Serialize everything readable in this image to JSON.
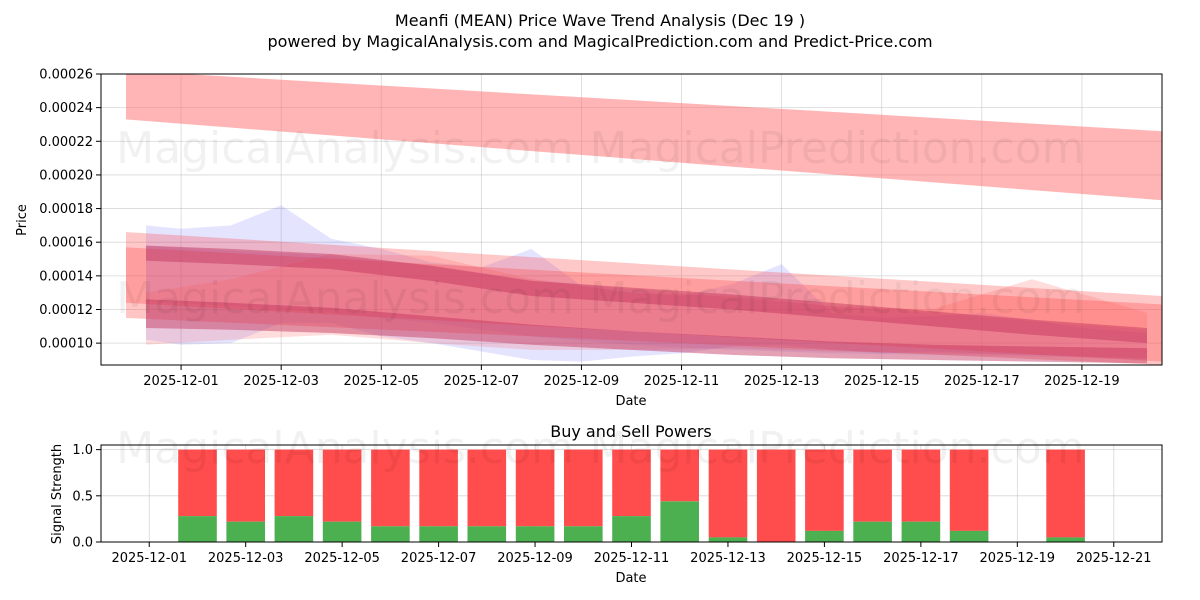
{
  "figure": {
    "title_line1": "Meanfi (MEAN) Price Wave Trend Analysis (Dec 19 )",
    "title_line2": "powered by MagicalAnalysis.com and MagicalPrediction.com and Predict-Price.com",
    "watermark_left": "MagicalAnalysis.com",
    "watermark_right": "MagicalPrediction.com"
  },
  "chart_data": [
    {
      "type": "area",
      "title": "",
      "xlabel": "Date",
      "ylabel": "Price",
      "ylim": [
        8.7e-05,
        0.00026
      ],
      "x_range_days": [
        -0.6,
        20.6
      ],
      "x_start_date": "2025-11-30",
      "xticks": [
        {
          "day": 1,
          "label": "2025-12-01"
        },
        {
          "day": 3,
          "label": "2025-12-03"
        },
        {
          "day": 5,
          "label": "2025-12-05"
        },
        {
          "day": 7,
          "label": "2025-12-07"
        },
        {
          "day": 9,
          "label": "2025-12-09"
        },
        {
          "day": 11,
          "label": "2025-12-11"
        },
        {
          "day": 13,
          "label": "2025-12-13"
        },
        {
          "day": 15,
          "label": "2025-12-15"
        },
        {
          "day": 17,
          "label": "2025-12-17"
        },
        {
          "day": 19,
          "label": "2025-12-19"
        }
      ],
      "yticks": [
        {
          "value": 0.0001,
          "label": "0.00010"
        },
        {
          "value": 0.00012,
          "label": "0.00012"
        },
        {
          "value": 0.00014,
          "label": "0.00014"
        },
        {
          "value": 0.00016,
          "label": "0.00016"
        },
        {
          "value": 0.00018,
          "label": "0.00018"
        },
        {
          "value": 0.0002,
          "label": "0.00020"
        },
        {
          "value": 0.00022,
          "label": "0.00022"
        },
        {
          "value": 0.00024,
          "label": "0.00024"
        },
        {
          "value": 0.00026,
          "label": "0.00026"
        }
      ],
      "bands": [
        {
          "name": "upper-red-band",
          "color": "#ff6b6b",
          "opacity": 0.5,
          "x": [
            -0.1,
            20.6
          ],
          "upper": [
            0.000262,
            0.000226
          ],
          "lower": [
            0.000233,
            0.000185
          ]
        },
        {
          "name": "blue-wave-1",
          "color": "#6b6bff",
          "opacity": 0.18,
          "x": [
            0.3,
            1,
            2,
            3,
            4,
            5,
            6,
            7,
            8,
            9,
            10,
            11,
            12,
            13,
            14,
            15,
            16,
            17,
            18,
            19,
            20.3
          ],
          "upper": [
            0.00017,
            0.000168,
            0.00017,
            0.000182,
            0.000162,
            0.000156,
            0.000148,
            0.000145,
            0.000156,
            0.000134,
            0.00013,
            0.000128,
            0.000135,
            0.000147,
            0.000118,
            0.000115,
            0.000116,
            0.000118,
            0.000114,
            0.000109,
            0.000106
          ],
          "lower": [
            0.000102,
            9.9e-05,
            0.0001,
            0.000112,
            0.000112,
            0.000104,
            0.0001,
            9.5e-05,
            9e-05,
            8.9e-05,
            9.2e-05,
            9.4e-05,
            9.8e-05,
            9.9e-05,
            9.6e-05,
            9.4e-05,
            9.5e-05,
            9.4e-05,
            9.3e-05,
            9.2e-05,
            9e-05
          ]
        },
        {
          "name": "blue-wave-2",
          "color": "#6b6bff",
          "opacity": 0.15,
          "x": [
            0.3,
            2,
            4,
            6,
            8,
            10,
            12,
            14,
            16,
            18,
            20.3
          ],
          "upper": [
            0.000158,
            0.000155,
            0.000152,
            0.000146,
            0.000138,
            0.000132,
            0.000127,
            0.000122,
            0.000118,
            0.000113,
            0.000108
          ],
          "lower": [
            0.000125,
            0.000122,
            0.000118,
            0.000112,
            0.000104,
            9.9e-05,
            9.6e-05,
            9.4e-05,
            9.3e-05,
            9.2e-05,
            9.1e-05
          ]
        },
        {
          "name": "red-wave-1",
          "color": "#ff3b3b",
          "opacity": 0.28,
          "x": [
            -0.1,
            20.6
          ],
          "upper": [
            0.000166,
            0.000128
          ],
          "lower": [
            0.000124,
            8.9e-05
          ]
        },
        {
          "name": "red-wave-2",
          "color": "#ff4040",
          "opacity": 0.3,
          "x": [
            -0.1,
            20.6
          ],
          "upper": [
            0.000157,
            0.000123
          ],
          "lower": [
            0.000115,
            8.7e-05
          ]
        },
        {
          "name": "red-wave-3",
          "color": "#ff5555",
          "opacity": 0.2,
          "x": [
            0.3,
            2,
            4,
            6,
            8,
            10,
            12,
            14,
            16,
            18,
            20.3
          ],
          "upper": [
            0.00013,
            0.000138,
            0.000153,
            0.000152,
            0.000138,
            0.00013,
            0.000128,
            0.000122,
            0.00012,
            0.000138,
            0.000118
          ],
          "lower": [
            9.9e-05,
            0.000102,
            0.000105,
            0.0001,
            9.6e-05,
            9.6e-05,
            9.7e-05,
            9.5e-05,
            9.4e-05,
            9.3e-05,
            9.1e-05
          ]
        },
        {
          "name": "crimson-wave-1",
          "color": "#c0305a",
          "opacity": 0.45,
          "x": [
            0.3,
            2,
            4,
            6,
            8,
            10,
            12,
            14,
            16,
            18,
            20.3
          ],
          "upper": [
            0.000158,
            0.000156,
            0.000153,
            0.000146,
            0.000137,
            0.000133,
            0.000129,
            0.000124,
            0.000119,
            0.000114,
            0.000109
          ],
          "lower": [
            0.000149,
            0.000147,
            0.000144,
            0.000137,
            0.000128,
            0.000124,
            0.00012,
            0.000115,
            0.00011,
            0.000105,
            0.0001
          ]
        },
        {
          "name": "crimson-wave-2",
          "color": "#c0305a",
          "opacity": 0.45,
          "x": [
            0.3,
            2,
            4,
            6,
            8,
            10,
            12,
            14,
            16,
            18,
            20.3
          ],
          "upper": [
            0.000126,
            0.000124,
            0.000121,
            0.000116,
            0.000111,
            0.000107,
            0.000104,
            0.000101,
            9.9e-05,
            9.8e-05,
            9.7e-05
          ],
          "lower": [
            0.000109,
            0.000108,
            0.000106,
            0.000103,
            9.9e-05,
            9.6e-05,
            9.3e-05,
            9.1e-05,
            9e-05,
            8.9e-05,
            8.8e-05
          ]
        }
      ]
    },
    {
      "type": "bar",
      "title": "Buy and Sell Powers",
      "xlabel": "Date",
      "ylabel": "Signal Strength",
      "ylim": [
        0,
        1.05
      ],
      "x_range_days": [
        -1.0,
        21.0
      ],
      "x_start_date": "2025-12-01",
      "xticks": [
        {
          "day": 0,
          "label": "2025-12-01"
        },
        {
          "day": 2,
          "label": "2025-12-03"
        },
        {
          "day": 4,
          "label": "2025-12-05"
        },
        {
          "day": 6,
          "label": "2025-12-07"
        },
        {
          "day": 8,
          "label": "2025-12-09"
        },
        {
          "day": 10,
          "label": "2025-12-11"
        },
        {
          "day": 12,
          "label": "2025-12-13"
        },
        {
          "day": 14,
          "label": "2025-12-15"
        },
        {
          "day": 16,
          "label": "2025-12-17"
        },
        {
          "day": 18,
          "label": "2025-12-19"
        },
        {
          "day": 20,
          "label": "2025-12-21"
        }
      ],
      "yticks": [
        {
          "value": 0,
          "label": "0.0"
        },
        {
          "value": 0.5,
          "label": "0.5"
        },
        {
          "value": 1,
          "label": "1.0"
        }
      ],
      "series": [
        {
          "name": "Buy",
          "color": "#4caf50"
        },
        {
          "name": "Sell",
          "color": "#ff4c4c"
        }
      ],
      "bar_days": [
        1,
        2,
        3,
        4,
        5,
        6,
        7,
        8,
        9,
        10,
        11,
        12,
        13,
        14,
        15,
        16,
        17,
        19
      ],
      "buy": [
        0.28,
        0.22,
        0.28,
        0.22,
        0.17,
        0.17,
        0.17,
        0.17,
        0.17,
        0.28,
        0.44,
        0.05,
        0.0,
        0.12,
        0.22,
        0.22,
        0.12,
        0.05
      ],
      "total": [
        1,
        1,
        1,
        1,
        1,
        1,
        1,
        1,
        1,
        1,
        1,
        1,
        1,
        1,
        1,
        1,
        1,
        1
      ]
    }
  ]
}
